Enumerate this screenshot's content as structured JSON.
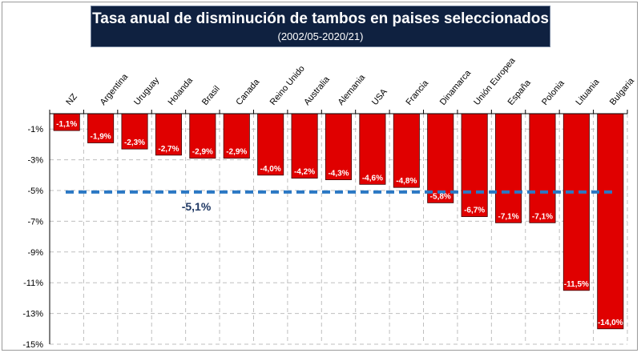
{
  "title": "Tasa anual de disminución de tambos en paises seleccionados",
  "subtitle": "(2002/05-2020/21)",
  "colors": {
    "bar": "#e00000",
    "bar_outline": "#3a0000",
    "average_line": "#2b78c4",
    "title_bg": "#0f2140",
    "grid": "#bfbfbf",
    "average_label": "#1f3864"
  },
  "chart_data": {
    "type": "bar",
    "categories": [
      "NZ",
      "Argentina",
      "Uruguay",
      "Holanda",
      "Brasil",
      "Canada",
      "Reino Unido",
      "Australia",
      "Alemania",
      "USA",
      "Francia",
      "Dinamarca",
      "Unión Europea",
      "España",
      "Polonia",
      "Lituania",
      "Bulgaria"
    ],
    "values": [
      -1.1,
      -1.9,
      -2.3,
      -2.7,
      -2.9,
      -2.9,
      -4.0,
      -4.2,
      -4.3,
      -4.6,
      -4.8,
      -5.8,
      -6.7,
      -7.1,
      -7.1,
      -11.5,
      -14.0
    ],
    "data_labels": [
      "-1,1%",
      "-1,9%",
      "-2,3%",
      "-2,7%",
      "-2,9%",
      "-2,9%",
      "-4,0%",
      "-4,2%",
      "-4,3%",
      "-4,6%",
      "-4,8%",
      "-5,8%",
      "-6,7%",
      "-7,1%",
      "-7,1%",
      "-11,5%",
      "-14,0%"
    ],
    "y_ticks": [
      -1,
      -3,
      -5,
      -7,
      -9,
      -11,
      -13,
      -15
    ],
    "y_tick_labels": [
      "-1%",
      "-3%",
      "-5%",
      "-7%",
      "-9%",
      "-11%",
      "-13%",
      "-15%"
    ],
    "ylim": [
      -15,
      0
    ],
    "average": {
      "value": -5.1,
      "label": "-5,1%"
    },
    "grid": true,
    "category_axis_position": "top"
  }
}
